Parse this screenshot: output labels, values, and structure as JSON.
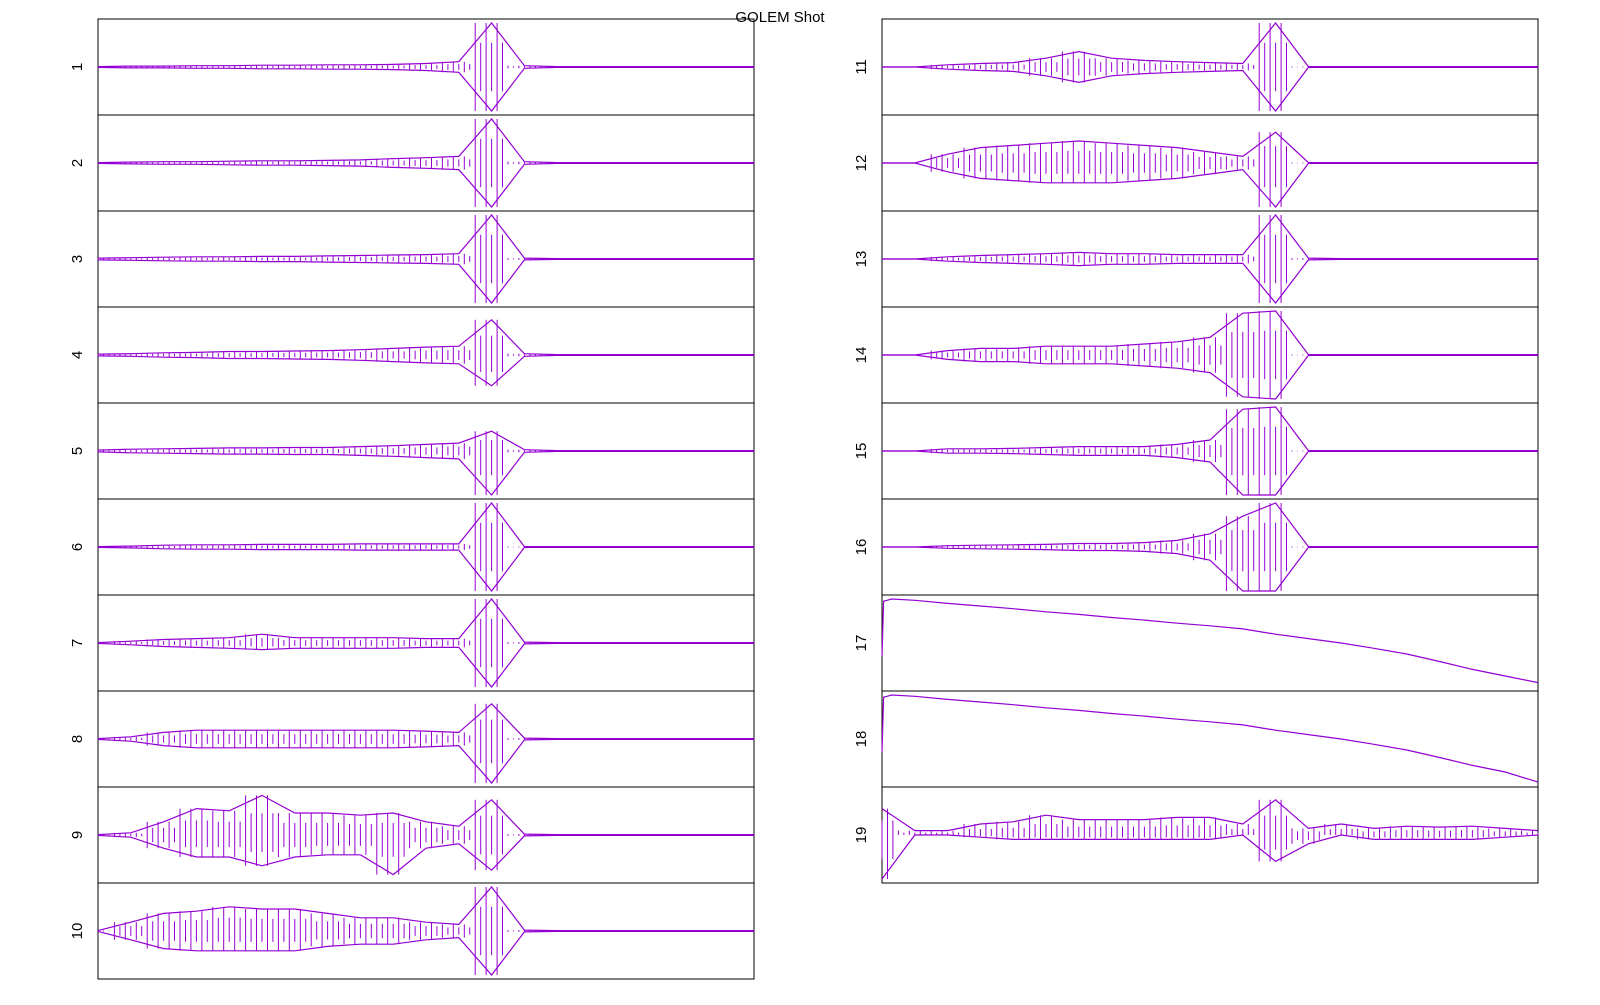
{
  "chart_data": [
    {
      "type": "band",
      "title": "GOLEM Shot",
      "ylabel": "1",
      "color": "#9400d3",
      "xlim": [
        0,
        20
      ],
      "ylim": [
        -1,
        1
      ],
      "x": [
        0,
        1,
        2,
        3,
        4,
        5,
        6,
        7,
        8,
        9,
        10,
        11,
        12,
        13,
        14,
        15,
        16,
        17,
        18,
        19,
        20
      ],
      "high": [
        0.01,
        0.02,
        0.02,
        0.03,
        0.03,
        0.04,
        0.04,
        0.05,
        0.05,
        0.06,
        0.08,
        0.12,
        1,
        0.03,
        0.01,
        0.01,
        0.01,
        0.01,
        0.01,
        0.01,
        0.01
      ],
      "low": [
        -0.01,
        -0.02,
        -0.02,
        -0.03,
        -0.03,
        -0.04,
        -0.04,
        -0.05,
        -0.05,
        -0.06,
        -0.08,
        -0.12,
        -1,
        -0.03,
        -0.01,
        -0.01,
        -0.01,
        -0.01,
        -0.01,
        -0.01,
        -0.01
      ]
    },
    {
      "type": "band",
      "ylabel": "2",
      "color": "#9400d3",
      "xlim": [
        0,
        20
      ],
      "ylim": [
        -1,
        1
      ],
      "x": [
        0,
        1,
        2,
        3,
        4,
        5,
        6,
        7,
        8,
        9,
        10,
        11,
        12,
        13,
        14,
        15,
        16,
        17,
        18,
        19,
        20
      ],
      "high": [
        0.01,
        0.02,
        0.03,
        0.03,
        0.04,
        0.05,
        0.05,
        0.06,
        0.07,
        0.1,
        0.12,
        0.15,
        1,
        0.03,
        0.01,
        0.01,
        0.01,
        0.01,
        0.01,
        0.01,
        0.01
      ],
      "low": [
        -0.01,
        -0.02,
        -0.03,
        -0.03,
        -0.04,
        -0.05,
        -0.05,
        -0.06,
        -0.07,
        -0.1,
        -0.12,
        -0.15,
        -1,
        -0.03,
        -0.01,
        -0.01,
        -0.01,
        -0.01,
        -0.01,
        -0.01,
        -0.01
      ]
    },
    {
      "type": "band",
      "ylabel": "3",
      "color": "#9400d3",
      "xlim": [
        0,
        20
      ],
      "ylim": [
        -1,
        1
      ],
      "x": [
        0,
        1,
        2,
        3,
        4,
        5,
        6,
        7,
        8,
        9,
        10,
        11,
        12,
        13,
        14,
        15,
        16,
        17,
        18,
        19,
        20
      ],
      "high": [
        0.02,
        0.03,
        0.04,
        0.05,
        0.05,
        0.06,
        0.06,
        0.07,
        0.08,
        0.09,
        0.1,
        0.12,
        1,
        0.02,
        0.01,
        0.01,
        0.01,
        0.01,
        0.01,
        0.01,
        0.01
      ],
      "low": [
        -0.02,
        -0.03,
        -0.04,
        -0.05,
        -0.05,
        -0.06,
        -0.06,
        -0.07,
        -0.08,
        -0.09,
        -0.1,
        -0.12,
        -1,
        -0.02,
        -0.01,
        -0.01,
        -0.01,
        -0.01,
        -0.01,
        -0.01,
        -0.01
      ]
    },
    {
      "type": "band",
      "ylabel": "4",
      "color": "#9400d3",
      "xlim": [
        0,
        20
      ],
      "ylim": [
        -1,
        1
      ],
      "x": [
        0,
        1,
        2,
        3,
        4,
        5,
        6,
        7,
        8,
        9,
        10,
        11,
        12,
        13,
        14,
        15,
        16,
        17,
        18,
        19,
        20
      ],
      "high": [
        0.02,
        0.03,
        0.05,
        0.06,
        0.08,
        0.08,
        0.09,
        0.1,
        0.12,
        0.15,
        0.18,
        0.2,
        0.8,
        0.03,
        0.01,
        0.01,
        0.01,
        0.01,
        0.01,
        0.01,
        0.01
      ],
      "low": [
        -0.02,
        -0.03,
        -0.05,
        -0.06,
        -0.08,
        -0.08,
        -0.09,
        -0.1,
        -0.12,
        -0.15,
        -0.18,
        -0.2,
        -0.7,
        -0.03,
        -0.01,
        -0.01,
        -0.01,
        -0.01,
        -0.01,
        -0.01,
        -0.01
      ]
    },
    {
      "type": "band",
      "ylabel": "5",
      "color": "#9400d3",
      "xlim": [
        0,
        20
      ],
      "ylim": [
        -1,
        1
      ],
      "x": [
        0,
        1,
        2,
        3,
        4,
        5,
        6,
        7,
        8,
        9,
        10,
        11,
        12,
        13,
        14,
        15,
        16,
        17,
        18,
        19,
        20
      ],
      "high": [
        0.02,
        0.04,
        0.05,
        0.06,
        0.07,
        0.07,
        0.08,
        0.08,
        0.1,
        0.12,
        0.15,
        0.18,
        0.45,
        0.03,
        0.01,
        0.01,
        0.01,
        0.01,
        0.01,
        0.01,
        0.01
      ],
      "low": [
        -0.02,
        -0.04,
        -0.05,
        -0.06,
        -0.07,
        -0.07,
        -0.08,
        -0.08,
        -0.1,
        -0.12,
        -0.15,
        -0.18,
        -1,
        -0.03,
        -0.01,
        -0.01,
        -0.01,
        -0.01,
        -0.01,
        -0.01,
        -0.01
      ]
    },
    {
      "type": "band",
      "ylabel": "6",
      "color": "#9400d3",
      "xlim": [
        0,
        20
      ],
      "ylim": [
        -1,
        1
      ],
      "x": [
        0,
        1,
        2,
        3,
        4,
        5,
        6,
        7,
        8,
        9,
        10,
        11,
        12,
        13,
        14,
        15,
        16,
        17,
        18,
        19,
        20
      ],
      "high": [
        0.01,
        0.02,
        0.04,
        0.05,
        0.05,
        0.06,
        0.06,
        0.06,
        0.07,
        0.07,
        0.07,
        0.07,
        1,
        0.01,
        0.01,
        0.01,
        0.01,
        0.01,
        0.01,
        0.01,
        0.01
      ],
      "low": [
        -0.01,
        -0.02,
        -0.04,
        -0.05,
        -0.05,
        -0.06,
        -0.06,
        -0.06,
        -0.07,
        -0.07,
        -0.07,
        -0.07,
        -1,
        -0.01,
        -0.01,
        -0.01,
        -0.01,
        -0.01,
        -0.01,
        -0.01,
        -0.01
      ]
    },
    {
      "type": "band",
      "ylabel": "7",
      "color": "#9400d3",
      "xlim": [
        0,
        20
      ],
      "ylim": [
        -1,
        1
      ],
      "x": [
        0,
        1,
        2,
        3,
        4,
        5,
        6,
        7,
        8,
        9,
        10,
        11,
        12,
        13,
        14,
        15,
        16,
        17,
        18,
        19,
        20
      ],
      "high": [
        0.01,
        0.04,
        0.08,
        0.1,
        0.12,
        0.2,
        0.12,
        0.12,
        0.12,
        0.12,
        0.1,
        0.1,
        1,
        0.02,
        0.01,
        0.01,
        0.01,
        0.01,
        0.01,
        0.01,
        0.01
      ],
      "low": [
        -0.01,
        -0.04,
        -0.08,
        -0.1,
        -0.12,
        -0.15,
        -0.12,
        -0.12,
        -0.12,
        -0.12,
        -0.1,
        -0.1,
        -1,
        -0.02,
        -0.01,
        -0.01,
        -0.01,
        -0.01,
        -0.01,
        -0.01,
        -0.01
      ]
    },
    {
      "type": "band",
      "ylabel": "8",
      "color": "#9400d3",
      "xlim": [
        0,
        20
      ],
      "ylim": [
        -1,
        1
      ],
      "x": [
        0,
        1,
        2,
        3,
        4,
        5,
        6,
        7,
        8,
        9,
        10,
        11,
        12,
        13,
        14,
        15,
        16,
        17,
        18,
        19,
        20
      ],
      "high": [
        0.01,
        0.05,
        0.15,
        0.2,
        0.2,
        0.2,
        0.2,
        0.2,
        0.2,
        0.2,
        0.18,
        0.15,
        0.8,
        0.02,
        0.01,
        0.01,
        0.01,
        0.01,
        0.01,
        0.01,
        0.01
      ],
      "low": [
        -0.01,
        -0.05,
        -0.15,
        -0.2,
        -0.2,
        -0.2,
        -0.2,
        -0.2,
        -0.2,
        -0.2,
        -0.18,
        -0.15,
        -1,
        -0.02,
        -0.01,
        -0.01,
        -0.01,
        -0.01,
        -0.01,
        -0.01,
        -0.01
      ]
    },
    {
      "type": "band",
      "ylabel": "9",
      "color": "#9400d3",
      "xlim": [
        0,
        20
      ],
      "ylim": [
        -1,
        1
      ],
      "x": [
        0,
        1,
        2,
        3,
        4,
        5,
        6,
        7,
        8,
        9,
        10,
        11,
        12,
        13,
        14,
        15,
        16,
        17,
        18,
        19,
        20
      ],
      "high": [
        0.01,
        0.05,
        0.3,
        0.6,
        0.55,
        0.9,
        0.5,
        0.5,
        0.45,
        0.5,
        0.3,
        0.2,
        0.8,
        0.02,
        0.01,
        0.01,
        0.01,
        0.01,
        0.01,
        0.01,
        0.01
      ],
      "low": [
        -0.01,
        -0.05,
        -0.3,
        -0.5,
        -0.5,
        -0.7,
        -0.5,
        -0.45,
        -0.45,
        -0.9,
        -0.3,
        -0.2,
        -0.8,
        -0.02,
        -0.01,
        -0.01,
        -0.01,
        -0.01,
        -0.01,
        -0.01,
        -0.01
      ]
    },
    {
      "type": "band",
      "ylabel": "10",
      "color": "#9400d3",
      "xlim": [
        0,
        20
      ],
      "ylim": [
        -1,
        1
      ],
      "x": [
        0,
        1,
        2,
        3,
        4,
        5,
        6,
        7,
        8,
        9,
        10,
        11,
        12,
        13,
        14,
        15,
        16,
        17,
        18,
        19,
        20
      ],
      "high": [
        0.01,
        0.2,
        0.4,
        0.45,
        0.55,
        0.5,
        0.5,
        0.4,
        0.3,
        0.3,
        0.2,
        0.15,
        1,
        0.02,
        0.01,
        0.01,
        0.01,
        0.01,
        0.01,
        0.01,
        0.01
      ],
      "low": [
        -0.01,
        -0.2,
        -0.4,
        -0.45,
        -0.45,
        -0.45,
        -0.45,
        -0.35,
        -0.3,
        -0.3,
        -0.2,
        -0.15,
        -1,
        -0.02,
        -0.01,
        -0.01,
        -0.01,
        -0.01,
        -0.01,
        -0.01,
        -0.01
      ]
    },
    {
      "type": "band",
      "ylabel": "11",
      "color": "#9400d3",
      "xlim": [
        0,
        20
      ],
      "ylim": [
        -1,
        1
      ],
      "x": [
        0,
        1,
        2,
        3,
        4,
        5,
        6,
        7,
        8,
        9,
        10,
        11,
        12,
        13,
        14,
        15,
        16,
        17,
        18,
        19,
        20
      ],
      "high": [
        0,
        0,
        0.05,
        0.08,
        0.1,
        0.2,
        0.35,
        0.2,
        0.15,
        0.12,
        0.1,
        0.08,
        1,
        0.01,
        0.01,
        0.01,
        0.01,
        0.01,
        0.01,
        0.01,
        0.01
      ],
      "low": [
        0,
        0,
        -0.05,
        -0.08,
        -0.1,
        -0.2,
        -0.35,
        -0.2,
        -0.15,
        -0.12,
        -0.1,
        -0.08,
        -1,
        -0.01,
        -0.01,
        -0.01,
        -0.01,
        -0.01,
        -0.01,
        -0.01,
        -0.01
      ]
    },
    {
      "type": "band",
      "ylabel": "12",
      "color": "#9400d3",
      "xlim": [
        0,
        20
      ],
      "ylim": [
        -1,
        1
      ],
      "x": [
        0,
        1,
        2,
        3,
        4,
        5,
        6,
        7,
        8,
        9,
        10,
        11,
        12,
        13,
        14,
        15,
        16,
        17,
        18,
        19,
        20
      ],
      "high": [
        0,
        0,
        0.2,
        0.35,
        0.4,
        0.45,
        0.5,
        0.45,
        0.4,
        0.35,
        0.25,
        0.15,
        0.7,
        0.01,
        0.01,
        0.01,
        0.01,
        0.01,
        0.01,
        0.01,
        0.01
      ],
      "low": [
        0,
        0,
        -0.2,
        -0.35,
        -0.4,
        -0.45,
        -0.45,
        -0.45,
        -0.4,
        -0.35,
        -0.25,
        -0.15,
        -1,
        -0.01,
        -0.01,
        -0.01,
        -0.01,
        -0.01,
        -0.01,
        -0.01,
        -0.01
      ]
    },
    {
      "type": "band",
      "ylabel": "13",
      "color": "#9400d3",
      "xlim": [
        0,
        20
      ],
      "ylim": [
        -1,
        1
      ],
      "x": [
        0,
        1,
        2,
        3,
        4,
        5,
        6,
        7,
        8,
        9,
        10,
        11,
        12,
        13,
        14,
        15,
        16,
        17,
        18,
        19,
        20
      ],
      "high": [
        0,
        0,
        0.05,
        0.08,
        0.1,
        0.12,
        0.15,
        0.12,
        0.12,
        0.1,
        0.1,
        0.1,
        1,
        0.02,
        0.01,
        0.01,
        0.01,
        0.01,
        0.01,
        0.01,
        0.01
      ],
      "low": [
        0,
        0,
        -0.05,
        -0.08,
        -0.1,
        -0.12,
        -0.15,
        -0.12,
        -0.12,
        -0.1,
        -0.1,
        -0.1,
        -1,
        -0.02,
        -0.01,
        -0.01,
        -0.01,
        -0.01,
        -0.01,
        -0.01,
        -0.01
      ]
    },
    {
      "type": "band",
      "ylabel": "14",
      "color": "#9400d3",
      "xlim": [
        0,
        20
      ],
      "ylim": [
        -1,
        1
      ],
      "x": [
        0,
        1,
        2,
        3,
        4,
        5,
        6,
        7,
        8,
        9,
        10,
        11,
        12,
        13,
        14,
        15,
        16,
        17,
        18,
        19,
        20
      ],
      "high": [
        0,
        0,
        0.1,
        0.15,
        0.15,
        0.2,
        0.2,
        0.2,
        0.25,
        0.3,
        0.4,
        0.95,
        1,
        0.01,
        0.01,
        0.01,
        0.01,
        0.01,
        0.01,
        0.01,
        0.01
      ],
      "low": [
        0,
        0,
        -0.1,
        -0.15,
        -0.15,
        -0.2,
        -0.2,
        -0.2,
        -0.25,
        -0.3,
        -0.4,
        -0.95,
        -1,
        -0.01,
        -0.01,
        -0.01,
        -0.01,
        -0.01,
        -0.01,
        -0.01,
        -0.01
      ]
    },
    {
      "type": "band",
      "ylabel": "15",
      "color": "#9400d3",
      "xlim": [
        0,
        20
      ],
      "ylim": [
        -1,
        1
      ],
      "x": [
        0,
        1,
        2,
        3,
        4,
        5,
        6,
        7,
        8,
        9,
        10,
        11,
        12,
        13,
        14,
        15,
        16,
        17,
        18,
        19,
        20
      ],
      "high": [
        0,
        0,
        0.05,
        0.05,
        0.06,
        0.08,
        0.1,
        0.1,
        0.1,
        0.15,
        0.25,
        0.95,
        1,
        0.01,
        0.01,
        0.01,
        0.01,
        0.01,
        0.01,
        0.01,
        0.01
      ],
      "low": [
        0,
        0,
        -0.05,
        -0.05,
        -0.06,
        -0.08,
        -0.1,
        -0.1,
        -0.1,
        -0.15,
        -0.25,
        -1,
        -1,
        -0.01,
        -0.01,
        -0.01,
        -0.01,
        -0.01,
        -0.01,
        -0.01,
        -0.01
      ]
    },
    {
      "type": "band",
      "ylabel": "16",
      "color": "#9400d3",
      "xlim": [
        0,
        20
      ],
      "ylim": [
        -1,
        1
      ],
      "x": [
        0,
        1,
        2,
        3,
        4,
        5,
        6,
        7,
        8,
        9,
        10,
        11,
        12,
        13,
        14,
        15,
        16,
        17,
        18,
        19,
        20
      ],
      "high": [
        0,
        0,
        0.03,
        0.04,
        0.05,
        0.06,
        0.08,
        0.08,
        0.1,
        0.15,
        0.3,
        0.7,
        1,
        0.01,
        0.01,
        0.01,
        0.01,
        0.01,
        0.01,
        0.01,
        0.01
      ],
      "low": [
        0,
        0,
        -0.03,
        -0.04,
        -0.05,
        -0.06,
        -0.08,
        -0.08,
        -0.1,
        -0.15,
        -0.3,
        -1,
        -1,
        -0.01,
        -0.01,
        -0.01,
        -0.01,
        -0.01,
        -0.01,
        -0.01,
        -0.01
      ]
    },
    {
      "type": "line",
      "ylabel": "17",
      "color": "#9400d3",
      "xlim": [
        0,
        20
      ],
      "ylim": [
        -1,
        1
      ],
      "x": [
        0,
        0.05,
        0.3,
        1,
        2,
        3,
        4,
        5,
        6,
        7,
        8,
        9,
        10,
        11,
        12,
        13,
        14,
        15,
        16,
        17,
        18,
        19,
        20
      ],
      "values": [
        -0.3,
        0.95,
        1,
        0.97,
        0.9,
        0.84,
        0.78,
        0.71,
        0.65,
        0.58,
        0.52,
        0.45,
        0.39,
        0.32,
        0.2,
        0.1,
        0,
        -0.12,
        -0.25,
        -0.42,
        -0.6,
        -0.75,
        -0.9
      ]
    },
    {
      "type": "line",
      "ylabel": "18",
      "color": "#9400d3",
      "xlim": [
        0,
        20
      ],
      "ylim": [
        -1,
        1
      ],
      "x": [
        0,
        0.05,
        0.3,
        1,
        2,
        3,
        4,
        5,
        6,
        7,
        8,
        9,
        10,
        11,
        12,
        13,
        14,
        15,
        16,
        17,
        18,
        19,
        20
      ],
      "values": [
        -0.3,
        0.95,
        1,
        0.97,
        0.9,
        0.84,
        0.78,
        0.71,
        0.65,
        0.58,
        0.52,
        0.45,
        0.39,
        0.32,
        0.2,
        0.1,
        0,
        -0.12,
        -0.25,
        -0.42,
        -0.6,
        -0.75,
        -0.98
      ]
    },
    {
      "type": "band",
      "ylabel": "19",
      "color": "#9400d3",
      "xlim": [
        0,
        20
      ],
      "ylim": [
        -1,
        1
      ],
      "x": [
        0,
        1,
        2,
        3,
        4,
        5,
        6,
        7,
        8,
        9,
        10,
        11,
        12,
        13,
        14,
        15,
        16,
        17,
        18,
        19,
        20
      ],
      "high": [
        0.6,
        0.1,
        0.1,
        0.25,
        0.3,
        0.45,
        0.35,
        0.35,
        0.35,
        0.4,
        0.4,
        0.25,
        0.8,
        0.15,
        0.25,
        0.15,
        0.2,
        0.18,
        0.2,
        0.15,
        0.1
      ],
      "low": [
        -1,
        0,
        0,
        -0.05,
        -0.1,
        -0.1,
        -0.1,
        -0.1,
        -0.1,
        -0.1,
        -0.1,
        0,
        -0.6,
        -0.2,
        0,
        -0.1,
        -0.1,
        -0.1,
        -0.1,
        -0.05,
        0
      ]
    }
  ]
}
